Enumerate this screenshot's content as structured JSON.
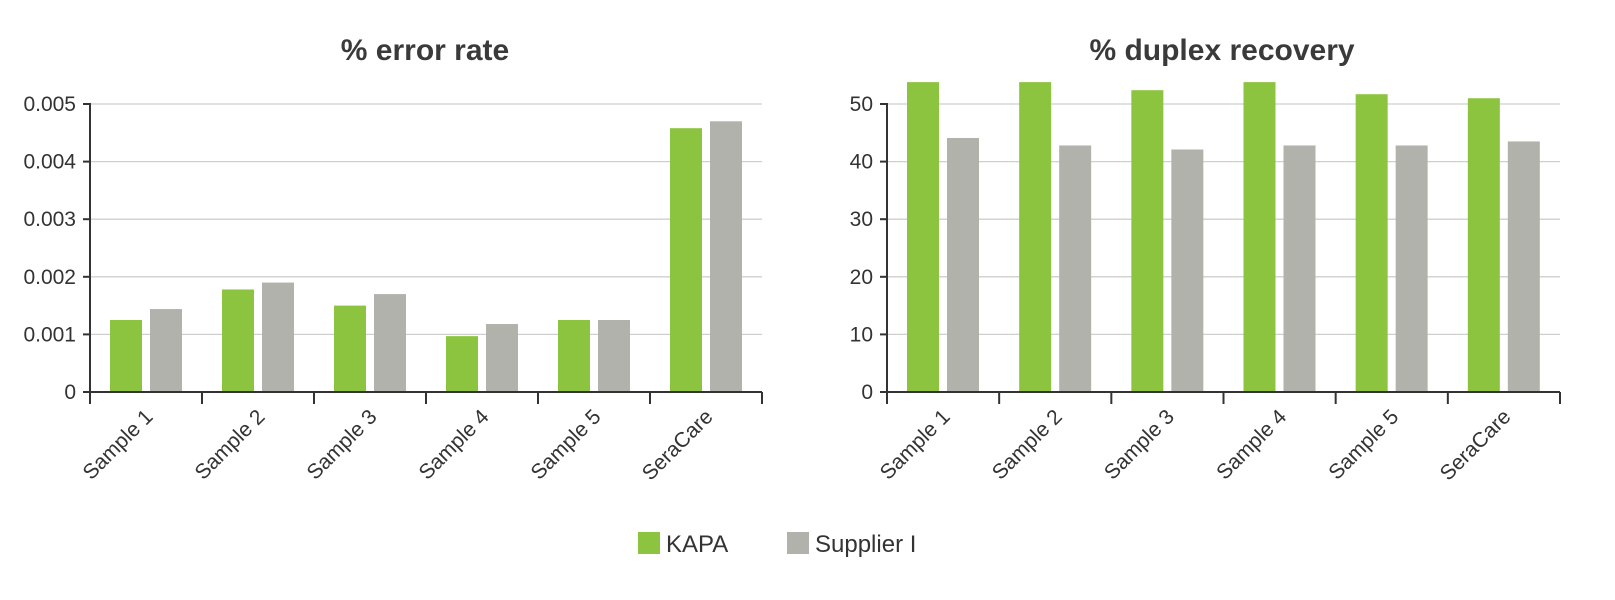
{
  "chart_data": [
    {
      "type": "bar",
      "title": "% error rate",
      "categories": [
        "Sample 1",
        "Sample 2",
        "Sample 3",
        "Sample 4",
        "Sample 5",
        "SeraCare"
      ],
      "series": [
        {
          "name": "KAPA",
          "color": "#8cc43f",
          "values": [
            0.00125,
            0.00178,
            0.0015,
            0.00097,
            0.00125,
            0.00458
          ]
        },
        {
          "name": "Supplier I",
          "color": "#b2b2ac",
          "values": [
            0.00144,
            0.0019,
            0.0017,
            0.00118,
            0.00125,
            0.0047
          ]
        }
      ],
      "yticks": [
        "0",
        "0.001",
        "0.002",
        "0.003",
        "0.004",
        "0.005"
      ],
      "ylim": [
        0,
        0.005
      ],
      "grid": true
    },
    {
      "type": "bar",
      "title": "% duplex recovery",
      "categories": [
        "Sample 1",
        "Sample 2",
        "Sample 3",
        "Sample 4",
        "Sample 5",
        "SeraCare"
      ],
      "series": [
        {
          "name": "KAPA",
          "color": "#8cc43f",
          "values": [
            53.8,
            53.8,
            52.4,
            53.8,
            51.7,
            51.0
          ]
        },
        {
          "name": "Supplier I",
          "color": "#b2b2ac",
          "values": [
            44.1,
            42.8,
            42.1,
            42.8,
            42.8,
            43.5
          ]
        }
      ],
      "yticks": [
        "0",
        "10",
        "20",
        "30",
        "40",
        "50"
      ],
      "ylim": [
        0,
        50
      ],
      "grid": true
    }
  ],
  "legend": {
    "placement": "bottom-center",
    "items": [
      {
        "label": "KAPA",
        "color": "#8cc43f"
      },
      {
        "label": "Supplier I",
        "color": "#b2b2ac"
      }
    ]
  }
}
